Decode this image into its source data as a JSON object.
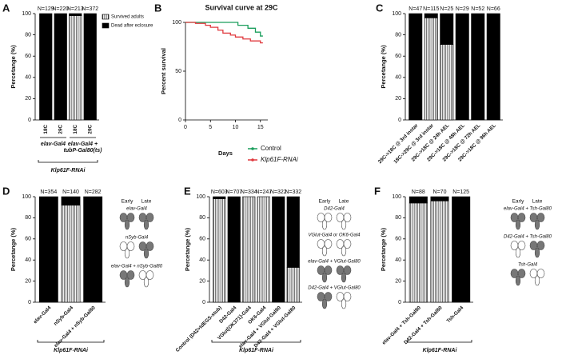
{
  "chart_data": [
    {
      "type": "bar",
      "panel": "A",
      "ylabel": "Percetange (%)",
      "ylim": [
        0,
        100
      ],
      "yticks": [
        0,
        20,
        40,
        60,
        80,
        100
      ],
      "categories": [
        "18C",
        "29C",
        "18C",
        "29C"
      ],
      "n_labels": [
        "N=129",
        "N=220",
        "N=213",
        "N=372"
      ],
      "series": [
        {
          "name": "Survived adults",
          "color": "#ffffff",
          "pattern": "stripes",
          "values": [
            0,
            0,
            98,
            0
          ]
        },
        {
          "name": "Dead after eclosure",
          "color": "#000000",
          "values": [
            100,
            100,
            2,
            100
          ]
        }
      ],
      "groups": [
        [
          "elav-Gal4"
        ],
        [
          "elav-Gal4 +",
          "tubP-Gal80(ts)"
        ]
      ],
      "footer": "Klp61F-RNAi",
      "legend": "right"
    },
    {
      "type": "line",
      "panel": "B",
      "title": "Survival curve at 29C",
      "xlabel": "Days",
      "ylabel": "Percent survival",
      "xlim": [
        0,
        16
      ],
      "xticks": [
        0,
        5,
        10,
        15
      ],
      "ylim": [
        0,
        100
      ],
      "yticks": [
        0,
        50,
        100
      ],
      "series": [
        {
          "name": "Control",
          "color": "#1a9e5c",
          "x": [
            0,
            10.5,
            10.5,
            12.5,
            12.5,
            14,
            14,
            15,
            15,
            15.5
          ],
          "values": [
            100,
            100,
            97,
            97,
            94,
            94,
            90,
            90,
            86,
            86
          ]
        },
        {
          "name": "Klp61F-RNAi",
          "color": "#e0393e",
          "x": [
            0,
            2,
            2,
            4,
            4,
            5,
            5,
            6.5,
            6.5,
            7.5,
            7.5,
            9,
            9,
            10,
            10,
            11.5,
            11.5,
            13,
            13,
            15,
            15,
            15.5
          ],
          "values": [
            100,
            100,
            99,
            99,
            97,
            97,
            95,
            95,
            92,
            92,
            89,
            89,
            87,
            87,
            85,
            85,
            83,
            83,
            81,
            81,
            79,
            79
          ]
        }
      ],
      "legend": "lower-right"
    },
    {
      "type": "bar",
      "panel": "C",
      "ylabel": "Percetange (%)",
      "ylim": [
        0,
        100
      ],
      "yticks": [
        0,
        20,
        40,
        60,
        80,
        100
      ],
      "categories": [
        "29C->18C @ 3rd instar",
        "18C->29C @ 3rd instar",
        "29C->18C @ 24h AEL",
        "29C->18C @ 48h AEL",
        "29C->18C @ 72h AEL",
        "29C->18C @ 96h AEL"
      ],
      "n_labels": [
        "N=47",
        "N=115",
        "N=25",
        "N=29",
        "N=52",
        "N=66"
      ],
      "series": [
        {
          "color": "#ffffff",
          "pattern": "stripes",
          "values": [
            0,
            96,
            71,
            0,
            0,
            0
          ]
        },
        {
          "color": "#000000",
          "values": [
            100,
            4,
            29,
            100,
            100,
            100
          ]
        }
      ]
    },
    {
      "type": "bar",
      "panel": "D",
      "ylabel": "Percetange (%)",
      "ylim": [
        0,
        100
      ],
      "yticks": [
        0,
        20,
        40,
        60,
        80,
        100
      ],
      "categories": [
        "elav-Gal4",
        "nSyb-Gal4",
        "elav-Gal4 + nSyb-Gal80"
      ],
      "n_labels": [
        "N=354",
        "N=140",
        "N=282"
      ],
      "series": [
        {
          "color": "#ffffff",
          "pattern": "stripes",
          "values": [
            0,
            92,
            0
          ]
        },
        {
          "color": "#000000",
          "values": [
            100,
            8,
            100
          ]
        }
      ],
      "footer": "Klp61F-RNAi",
      "diagram": {
        "early": "Early",
        "late": "Late",
        "on_color": "#777777",
        "off_color": "#ffffff",
        "rows": [
          {
            "label": "elav-Gal4",
            "early_on": true,
            "late_on": true
          },
          {
            "label": "nSyb-Gal4",
            "early_on": false,
            "late_on": true
          },
          {
            "label": "elav-Gal4 + nSyb-Gal80",
            "early_on": true,
            "late_on": false
          }
        ]
      }
    },
    {
      "type": "bar",
      "panel": "E",
      "ylabel": "Percetange (%)",
      "ylim": [
        0,
        100
      ],
      "yticks": [
        0,
        20,
        40,
        60,
        80,
        100
      ],
      "categories": [
        "Control (D42>tdEGS-stub)",
        "D42-Gal4",
        "VGlut[OK371]-Gal4",
        "OK6-Gal4",
        "elav-Gal4 + VGlut-Gal80",
        "D42-Gal4 + VGlut-Gal80"
      ],
      "n_labels": [
        "N=603",
        "N=707",
        "N=334",
        "N=247",
        "N=322",
        "N=332"
      ],
      "series": [
        {
          "color": "#ffffff",
          "pattern": "stripes",
          "values": [
            98,
            0,
            100,
            100,
            0,
            33
          ]
        },
        {
          "color": "#000000",
          "values": [
            2,
            100,
            0,
            0,
            100,
            67
          ]
        }
      ],
      "footer": "Klp61F-RNAi",
      "diagram": {
        "early": "Early",
        "late": "Late",
        "on_color": "#777777",
        "off_color": "#ffffff",
        "rows": [
          {
            "label": "D42-Gal4",
            "early_on": false,
            "late_on": false
          },
          {
            "label": "VGlut-Gal4 or OK6-Gal4",
            "early_on": false,
            "late_on": false
          },
          {
            "label": "elav-Gal4 + VGlut-Gal80",
            "early_on": true,
            "late_on": true
          },
          {
            "label": "D42-Gal4 + VGlut-Gal80",
            "early_on": true,
            "late_on": false
          }
        ]
      }
    },
    {
      "type": "bar",
      "panel": "F",
      "ylabel": "Percetange (%)",
      "ylim": [
        0,
        100
      ],
      "yticks": [
        0,
        20,
        40,
        60,
        80,
        100
      ],
      "categories": [
        "elav-Gal4 + Tsh-Gal80",
        "D42-Gal4 + Tsh-Gal80",
        "Tsh-Gal4"
      ],
      "n_labels": [
        "N=88",
        "N=70",
        "N=125"
      ],
      "series": [
        {
          "color": "#ffffff",
          "pattern": "stripes",
          "values": [
            94,
            96,
            0
          ]
        },
        {
          "color": "#000000",
          "values": [
            6,
            4,
            100
          ]
        }
      ],
      "footer": "Klp61F-RNAi",
      "diagram": {
        "early": "Early",
        "late": "Late",
        "on_color": "#777777",
        "off_color": "#ffffff",
        "rows": [
          {
            "label": "elav-Gal4 + Tsh-Gal80",
            "early_on": true,
            "late_on": true
          },
          {
            "label": "D42-Gal4 + Tsh-Gal80",
            "early_on": false,
            "late_on": true
          },
          {
            "label": "Tsh-Gal4",
            "early_on": true,
            "late_on": false
          }
        ]
      }
    }
  ]
}
